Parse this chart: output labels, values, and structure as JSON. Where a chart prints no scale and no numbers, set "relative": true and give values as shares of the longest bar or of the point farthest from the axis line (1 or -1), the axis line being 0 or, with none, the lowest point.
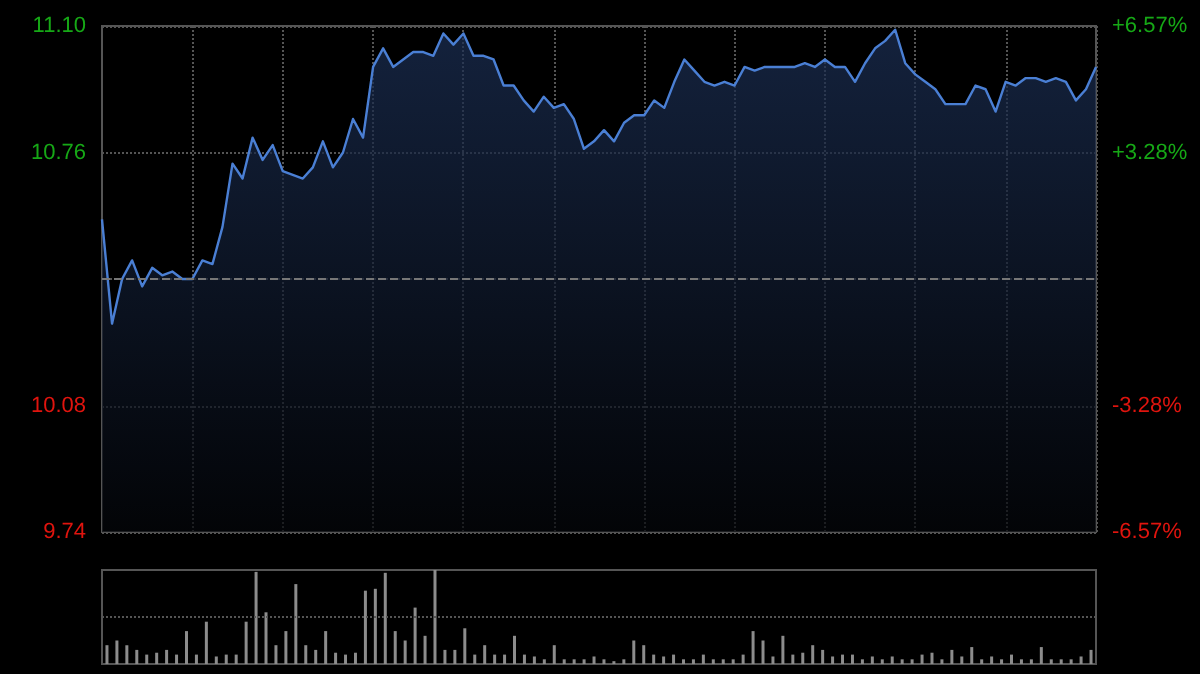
{
  "chart_data": [
    {
      "type": "area",
      "categories": [
        null,
        null,
        null,
        null,
        null,
        null,
        null,
        null,
        null,
        null,
        null,
        null,
        null,
        null,
        null,
        null,
        null,
        null,
        null,
        null,
        null,
        null,
        null,
        null,
        null,
        null,
        null,
        null,
        null,
        null,
        null,
        null,
        null,
        null,
        null,
        null,
        null,
        null,
        null,
        null,
        null,
        null,
        null,
        null,
        null,
        null,
        null,
        null,
        null,
        null,
        null,
        null,
        null,
        null,
        null,
        null,
        null,
        null,
        null,
        null,
        null,
        null,
        null,
        null,
        null,
        null,
        null,
        null,
        null,
        null,
        null,
        null,
        null,
        null,
        null,
        null,
        null,
        null,
        null,
        null,
        null,
        null,
        null,
        null,
        null,
        null,
        null,
        null,
        null,
        null,
        null,
        null,
        null,
        null,
        null,
        null,
        null,
        null,
        null,
        null
      ],
      "series": [
        {
          "color": "#4a7fd4",
          "values": [
            10.58,
            10.3,
            10.42,
            10.47,
            10.4,
            10.45,
            10.43,
            10.44,
            10.42,
            10.42,
            10.47,
            10.46,
            10.56,
            10.73,
            10.69,
            10.8,
            10.74,
            10.78,
            10.71,
            10.7,
            10.69,
            10.72,
            10.79,
            10.72,
            10.76,
            10.85,
            10.8,
            10.99,
            11.04,
            10.99,
            11.01,
            11.03,
            11.03,
            11.02,
            11.08,
            11.05,
            11.08,
            11.02,
            11.02,
            11.01,
            10.94,
            10.94,
            10.9,
            10.87,
            10.91,
            10.88,
            10.89,
            10.85,
            10.77,
            10.79,
            10.82,
            10.79,
            10.84,
            10.86,
            10.86,
            10.9,
            10.88,
            10.95,
            11.01,
            10.98,
            10.95,
            10.94,
            10.95,
            10.94,
            10.99,
            10.98,
            10.99,
            10.99,
            10.99,
            10.99,
            11.0,
            10.99,
            11.01,
            10.99,
            10.99,
            10.95,
            11.0,
            11.04,
            11.06,
            11.09,
            11.0,
            10.97,
            10.95,
            10.93,
            10.89,
            10.89,
            10.89,
            10.94,
            10.93,
            10.87,
            10.95,
            10.94,
            10.96,
            10.96,
            10.95,
            10.96,
            10.95,
            10.9,
            10.93,
            10.99
          ]
        }
      ],
      "ylim": [
        9.74,
        11.1
      ],
      "yticks": [
        {
          "value": 11.1,
          "label": "11.10"
        },
        10.76,
        10.08,
        9.74
      ],
      "y2lim": [
        -6.57,
        6.57
      ],
      "y2ticks": [
        {
          "value": 6.57,
          "label": "+6.57%"
        },
        {
          "value": 3.28,
          "label": "+3.28%"
        },
        {
          "value": -3.28,
          "label": "-3.28%"
        },
        {
          "value": -6.57,
          "label": "-6.57%"
        }
      ],
      "ref_lines": [
        {
          "axis": "y",
          "value": 10.42,
          "color": "#777777",
          "line_style": "dashed"
        }
      ],
      "grid": true
    },
    {
      "type": "bar",
      "relative": true,
      "categories": [
        null,
        null,
        null,
        null,
        null,
        null,
        null,
        null,
        null,
        null,
        null,
        null,
        null,
        null,
        null,
        null,
        null,
        null,
        null,
        null,
        null,
        null,
        null,
        null,
        null,
        null,
        null,
        null,
        null,
        null,
        null,
        null,
        null,
        null,
        null,
        null,
        null,
        null,
        null,
        null,
        null,
        null,
        null,
        null,
        null,
        null,
        null,
        null,
        null,
        null,
        null,
        null,
        null,
        null,
        null,
        null,
        null,
        null,
        null,
        null,
        null,
        null,
        null,
        null,
        null,
        null,
        null,
        null,
        null,
        null,
        null,
        null,
        null,
        null,
        null,
        null,
        null,
        null,
        null,
        null,
        null,
        null,
        null,
        null,
        null,
        null,
        null,
        null,
        null,
        null,
        null,
        null,
        null,
        null,
        null,
        null,
        null,
        null,
        null,
        null
      ],
      "series": [
        {
          "color": "#8c8c8c",
          "values": [
            0.2,
            0.25,
            0.2,
            0.15,
            0.1,
            0.12,
            0.15,
            0.1,
            0.35,
            0.1,
            0.45,
            0.08,
            0.1,
            0.1,
            0.45,
            0.98,
            0.55,
            0.2,
            0.35,
            0.85,
            0.2,
            0.15,
            0.35,
            0.12,
            0.1,
            0.12,
            0.78,
            0.8,
            0.97,
            0.35,
            0.25,
            0.6,
            0.3,
            1,
            0.15,
            0.15,
            0.38,
            0.1,
            0.2,
            0.1,
            0.1,
            0.3,
            0.1,
            0.08,
            0.05,
            0.2,
            0.05,
            0.05,
            0.05,
            0.08,
            0.05,
            0.03,
            0.05,
            0.25,
            0.2,
            0.1,
            0.08,
            0.1,
            0.05,
            0.05,
            0.1,
            0.05,
            0.05,
            0.05,
            0.1,
            0.35,
            0.25,
            0.08,
            0.3,
            0.1,
            0.12,
            0.2,
            0.15,
            0.08,
            0.1,
            0.1,
            0.05,
            0.08,
            0.05,
            0.08,
            0.05,
            0.05,
            0.1,
            0.12,
            0.05,
            0.15,
            0.08,
            0.18,
            0.05,
            0.08,
            0.05,
            0.1,
            0.05,
            0.05,
            0.18,
            0.05,
            0.05,
            0.05,
            0.08,
            0.15
          ]
        }
      ],
      "ref_lines": [
        {
          "axis": "y",
          "value": 0.5,
          "color": "#555555",
          "line_style": "dotted"
        }
      ]
    }
  ]
}
